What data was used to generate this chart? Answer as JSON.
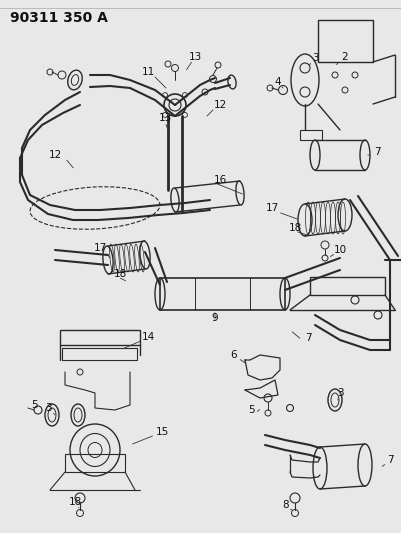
{
  "title": "90311 350 A",
  "bg_color": "#f0f0f0",
  "line_color": "#2a2a2a",
  "label_color": "#111111",
  "fig_width": 4.02,
  "fig_height": 5.33,
  "dpi": 100
}
